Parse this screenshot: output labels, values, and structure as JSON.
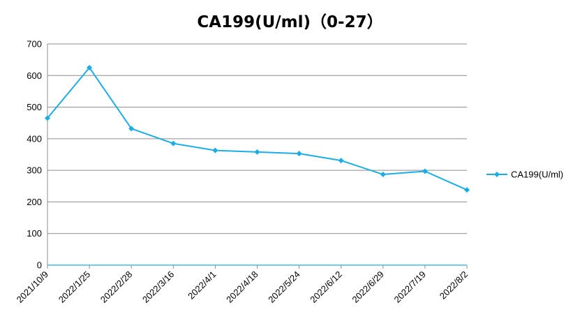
{
  "chart_data": {
    "type": "line",
    "title": "CA199(U/ml)（0-27）",
    "xlabel": "",
    "ylabel": "",
    "categories": [
      "2021/10/9",
      "2022/1/25",
      "2022/2/28",
      "2022/3/16",
      "2022/4/1",
      "2022/4/18",
      "2022/5/24",
      "2022/6/12",
      "2022/6/29",
      "2022/7/19",
      "2022/8/2"
    ],
    "series": [
      {
        "name": "CA199(U/ml)",
        "values": [
          465,
          625,
          432,
          385,
          363,
          358,
          353,
          331,
          287,
          297,
          238
        ]
      }
    ],
    "ylim": [
      0,
      700
    ],
    "yticks": [
      0,
      100,
      200,
      300,
      400,
      500,
      600,
      700
    ],
    "grid": true,
    "legend": "right",
    "colors": {
      "series": "#1CADE4",
      "grid": "#8c8c8c",
      "axis": "#8c8c8c"
    }
  }
}
